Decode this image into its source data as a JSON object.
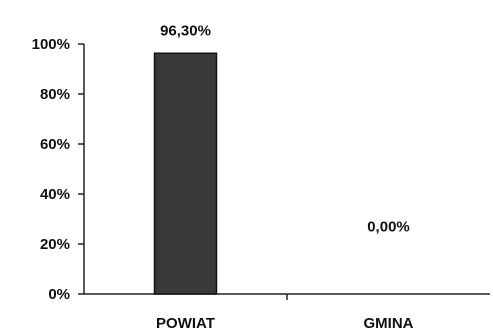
{
  "chart_data": {
    "type": "bar",
    "title": "",
    "xlabel": "",
    "ylabel": "",
    "categories": [
      "POWIAT",
      "GMINA"
    ],
    "values": [
      96.3,
      0.0
    ],
    "value_labels": [
      "96,30%",
      "0,00%"
    ],
    "ylim": [
      0,
      100
    ],
    "yticks": [
      0,
      20,
      40,
      60,
      80,
      100
    ],
    "ytick_labels": [
      "0%",
      "20%",
      "40%",
      "60%",
      "80%",
      "100%"
    ],
    "grid": false,
    "legend": "none",
    "colors": {
      "bar_fill": "#3a3a3a",
      "bar_stroke": "#111111",
      "axis": "#222222",
      "text": "#111111"
    }
  }
}
